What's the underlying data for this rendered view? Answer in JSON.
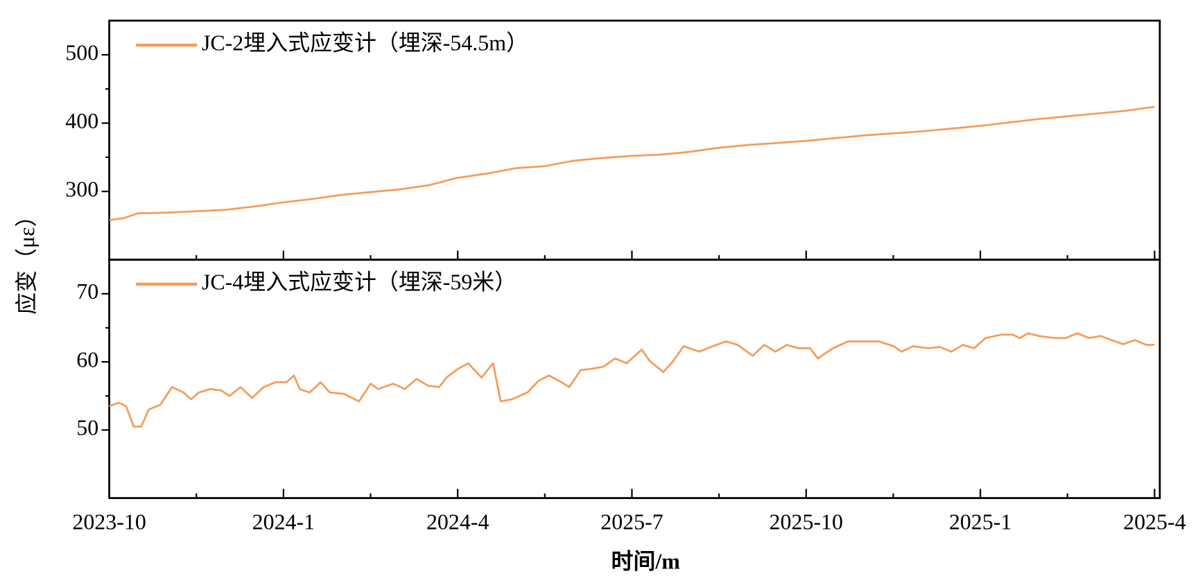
{
  "chart_data": [
    {
      "type": "line",
      "ylabel": "应变（με）",
      "xlim": [
        0,
        18.09
      ],
      "ylim": [
        200,
        550
      ],
      "yticks": [
        300,
        400,
        500
      ],
      "series": [
        {
          "name": "JC-2埋入式应变计（埋深-54.5m）",
          "color": "#f59c5a",
          "x": [
            0,
            0.25,
            0.5,
            1,
            1.5,
            2,
            2.5,
            3,
            3.5,
            4,
            4.5,
            5,
            5.5,
            6,
            6.5,
            7,
            7.5,
            8,
            8.5,
            9,
            9.5,
            10,
            10.5,
            11,
            11.5,
            12,
            12.5,
            13,
            13.5,
            14,
            14.5,
            15,
            15.5,
            16,
            16.5,
            17,
            17.5,
            18
          ],
          "values": [
            258,
            261,
            268,
            269,
            271,
            273,
            278,
            284,
            289,
            295,
            299,
            303,
            309,
            320,
            326,
            334,
            337,
            345,
            349,
            352,
            354,
            358,
            364,
            368,
            371,
            374,
            378,
            382,
            385,
            388,
            392,
            396,
            401,
            406,
            410,
            414,
            418,
            424
          ]
        }
      ]
    },
    {
      "type": "line",
      "xlabel": "时间/m",
      "xlim": [
        0,
        18.09
      ],
      "xticks": [
        {
          "value": 0,
          "label": "2023-10"
        },
        {
          "value": 3,
          "label": "2024-1"
        },
        {
          "value": 6,
          "label": "2024-4"
        },
        {
          "value": 9,
          "label": "2025-7"
        },
        {
          "value": 12,
          "label": "2025-10"
        },
        {
          "value": 15,
          "label": "2025-1"
        },
        {
          "value": 18,
          "label": "2025-4"
        }
      ],
      "ylim": [
        40,
        75
      ],
      "yticks": [
        50,
        60,
        70
      ],
      "series": [
        {
          "name": "JC-4埋入式应变计（埋深-59米）",
          "color": "#f59c5a",
          "x": [
            0,
            0.16,
            0.29,
            0.42,
            0.55,
            0.68,
            0.88,
            1.08,
            1.28,
            1.41,
            1.54,
            1.74,
            1.93,
            2.07,
            2.26,
            2.46,
            2.66,
            2.86,
            3.05,
            3.18,
            3.28,
            3.45,
            3.64,
            3.8,
            4.04,
            4.3,
            4.5,
            4.63,
            4.89,
            5.09,
            5.29,
            5.49,
            5.68,
            5.82,
            6.01,
            6.18,
            6.41,
            6.61,
            6.74,
            6.93,
            7.2,
            7.39,
            7.57,
            7.79,
            7.92,
            8.12,
            8.32,
            8.51,
            8.71,
            8.91,
            9.17,
            9.3,
            9.54,
            9.7,
            9.89,
            10.16,
            10.36,
            10.62,
            10.82,
            11.08,
            11.28,
            11.47,
            11.67,
            11.87,
            12.07,
            12.2,
            12.46,
            12.72,
            12.99,
            13.25,
            13.51,
            13.64,
            13.84,
            14.11,
            14.3,
            14.5,
            14.7,
            14.89,
            15.09,
            15.36,
            15.55,
            15.68,
            15.82,
            16.01,
            16.28,
            16.47,
            16.67,
            16.87,
            17.07,
            17.26,
            17.46,
            17.66,
            17.86,
            18
          ],
          "values": [
            53.5,
            54,
            53.5,
            50.5,
            50.5,
            53,
            53.7,
            56.3,
            55.5,
            54.5,
            55.5,
            56,
            55.8,
            55,
            56.3,
            54.7,
            56.3,
            57,
            57,
            58,
            56,
            55.5,
            57,
            55.5,
            55.3,
            54.2,
            56.8,
            56,
            56.8,
            56,
            57.5,
            56.5,
            56.3,
            57.8,
            59,
            59.8,
            57.7,
            59.8,
            54.2,
            54.5,
            55.5,
            57.2,
            58,
            57,
            56.3,
            58.8,
            59,
            59.3,
            60.5,
            59.8,
            61.8,
            60.2,
            58.5,
            60,
            62.3,
            61.5,
            62.2,
            63,
            62.5,
            60.9,
            62.5,
            61.5,
            62.5,
            62,
            62,
            60.5,
            62,
            63,
            63,
            63,
            62.3,
            61.5,
            62.3,
            62,
            62.2,
            61.5,
            62.5,
            62,
            63.5,
            64,
            64,
            63.5,
            64.2,
            63.8,
            63.5,
            63.5,
            64.2,
            63.5,
            63.8,
            63.2,
            62.6,
            63.2,
            62.5,
            62.5
          ]
        }
      ]
    }
  ]
}
